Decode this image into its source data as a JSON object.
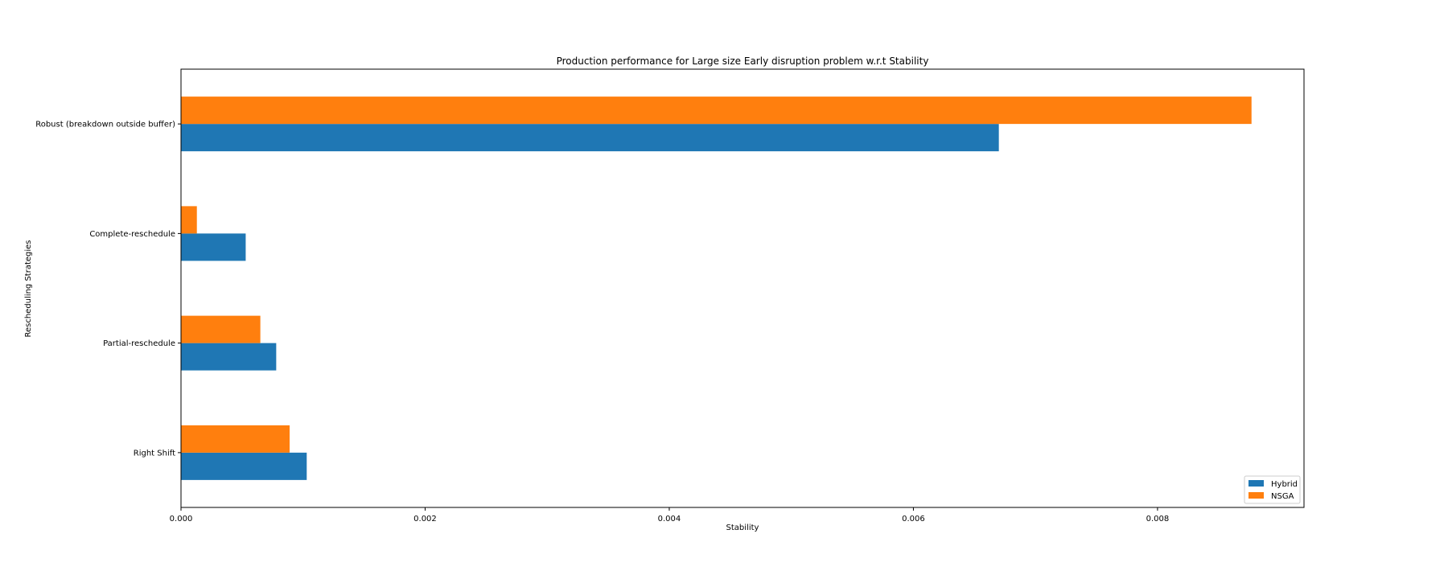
{
  "chart_data": {
    "type": "bar",
    "orientation": "horizontal",
    "title": "Production performance for Large size Early disruption problem w.r.t Stability",
    "xlabel": "Stability",
    "ylabel": "Rescheduling Strategies",
    "categories": [
      "Right Shift",
      "Partial-reschedule",
      "Complete-reschedule",
      "Robust (breakdown outside buffer)"
    ],
    "series": [
      {
        "name": "Hybrid",
        "color": "#1f77b4",
        "values": [
          0.00103,
          0.00078,
          0.00053,
          0.0067
        ]
      },
      {
        "name": "NSGA",
        "color": "#ff7f0e",
        "values": [
          0.00089,
          0.00065,
          0.00013,
          0.00877
        ]
      }
    ],
    "xlim": [
      0,
      0.0092
    ],
    "xticks": [
      0.0,
      0.002,
      0.004,
      0.006,
      0.008
    ],
    "xtick_labels": [
      "0.000",
      "0.002",
      "0.004",
      "0.006",
      "0.008"
    ],
    "grid": false,
    "legend_position": "lower-right"
  }
}
